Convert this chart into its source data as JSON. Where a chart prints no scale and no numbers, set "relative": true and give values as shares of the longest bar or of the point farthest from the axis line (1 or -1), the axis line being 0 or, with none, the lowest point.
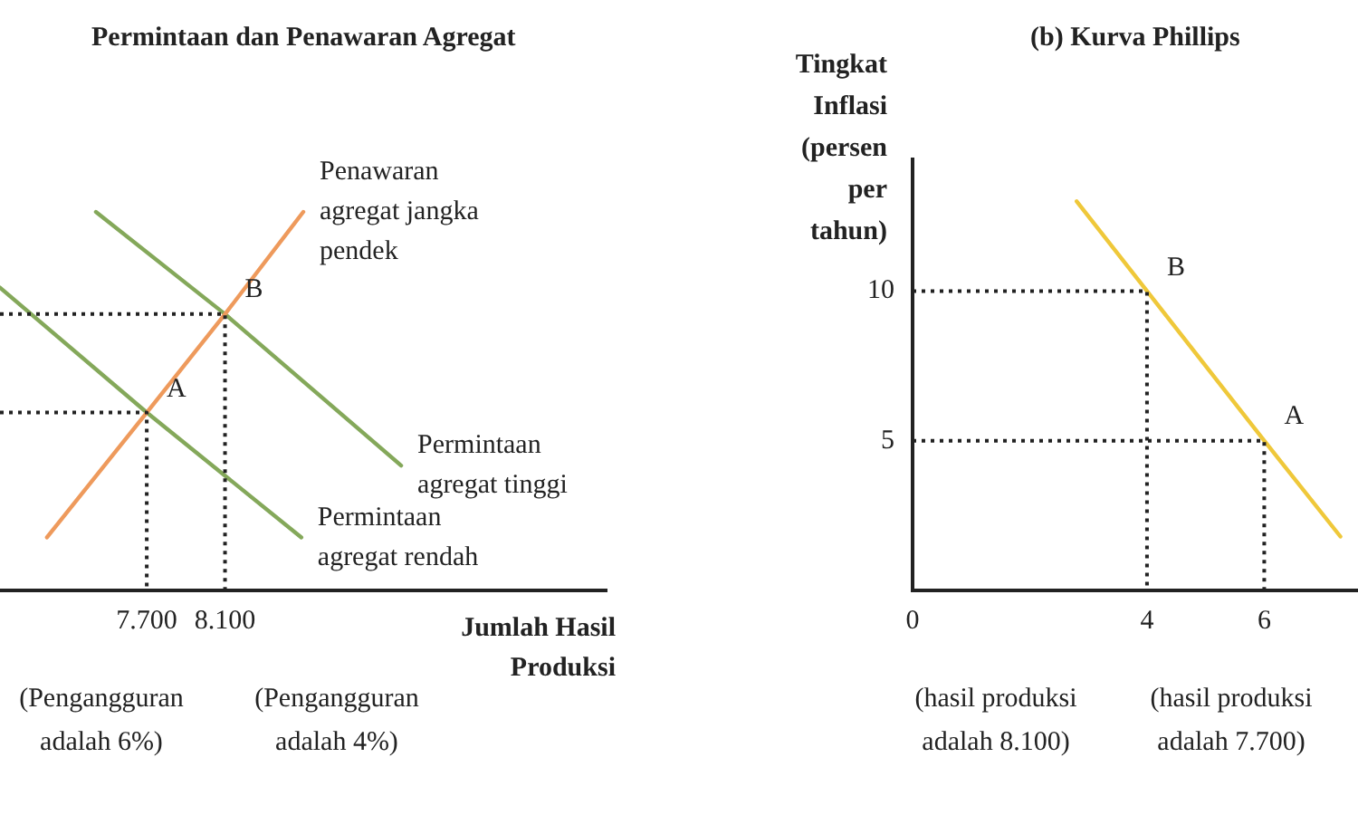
{
  "chart_data": [
    {
      "type": "line",
      "title": "Permintaan dan Penawaran Agregat",
      "xlabel": "Jumlah Hasil Produksi",
      "relative": true,
      "xlim": [
        6950,
        10050
      ],
      "xticks": [
        {
          "value": 7700,
          "label": "7.700"
        },
        {
          "value": 8100,
          "label": "8.100"
        }
      ],
      "series": [
        {
          "color": "#222222",
          "line_style": "dotted",
          "x": [
            6950,
            7700,
            7700
          ],
          "values": [
            0.47,
            0.47,
            0
          ]
        },
        {
          "color": "#222222",
          "line_style": "dotted",
          "x": [
            6950,
            8100,
            8100
          ],
          "values": [
            0.73,
            0.73,
            0
          ]
        },
        {
          "name": "Penawaran agregat jangka pendek",
          "color": "#ee9a5c",
          "x": [
            7190,
            7700,
            8100,
            8500
          ],
          "values": [
            0.14,
            0.47,
            0.73,
            1
          ]
        },
        {
          "name": "Permintaan agregat tinggi",
          "color": "#84a85a",
          "x": [
            7440,
            8100,
            9000
          ],
          "values": [
            1,
            0.73,
            0.33
          ]
        },
        {
          "name": "Permintaan agregat rendah",
          "color": "#84a85a",
          "x": [
            6950,
            7700,
            8490
          ],
          "values": [
            0.8,
            0.47,
            0.14
          ]
        }
      ],
      "annotations": [
        {
          "text": "A",
          "x": 7700,
          "y": 0.47
        },
        {
          "text": "B",
          "x": 8100,
          "y": 0.73
        },
        "(Pengangguran adalah 6%)",
        "(Pengangguran adalah 4%)"
      ]
    },
    {
      "type": "line",
      "title": "(b) Kurva Phillips",
      "ylabel": "Tingkat Inflasi (persen per tahun)",
      "xlim": [
        0,
        7.6
      ],
      "ylim": [
        0,
        14.4
      ],
      "xticks": [
        0,
        4,
        6
      ],
      "yticks": [
        5,
        10
      ],
      "series": [
        {
          "color": "#222222",
          "line_style": "dotted",
          "x": [
            0,
            4,
            4
          ],
          "values": [
            10,
            10,
            0
          ]
        },
        {
          "color": "#222222",
          "line_style": "dotted",
          "x": [
            0,
            6,
            6
          ],
          "values": [
            5,
            5,
            0
          ]
        },
        {
          "color": "#efc83a",
          "x": [
            2.8,
            4,
            6,
            7.3
          ],
          "values": [
            13,
            10,
            5,
            1.8
          ]
        }
      ],
      "annotations": [
        {
          "text": "B",
          "x": 4,
          "y": 10
        },
        {
          "text": "A",
          "x": 6,
          "y": 5
        },
        "(hasil produksi adalah 8.100)",
        "(hasil produksi adalah 7.700)"
      ]
    }
  ]
}
